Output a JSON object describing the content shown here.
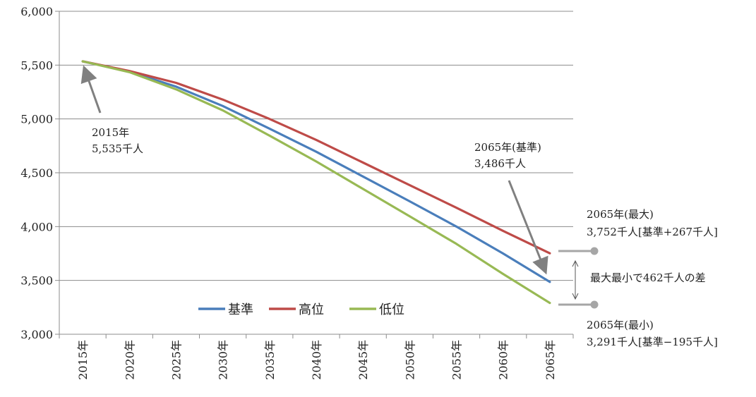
{
  "chart_data": {
    "type": "line",
    "categories": [
      "2015年",
      "2020年",
      "2025年",
      "2030年",
      "2035年",
      "2040年",
      "2045年",
      "2050年",
      "2055年",
      "2060年",
      "2065年"
    ],
    "series": [
      {
        "name": "基準",
        "color": "#4a7ebb",
        "values": [
          5535,
          5440,
          5300,
          5120,
          4910,
          4695,
          4465,
          4235,
          4000,
          3750,
          3486
        ]
      },
      {
        "name": "高位",
        "color": "#be4b48",
        "values": [
          5535,
          5445,
          5335,
          5180,
          5000,
          4805,
          4595,
          4385,
          4175,
          3960,
          3752
        ]
      },
      {
        "name": "低位",
        "color": "#98b954",
        "values": [
          5535,
          5435,
          5275,
          5080,
          4845,
          4605,
          4350,
          4095,
          3840,
          3560,
          3291
        ]
      }
    ],
    "y_ticks": [
      "3,000",
      "3,500",
      "4,000",
      "4,500",
      "5,000",
      "5,500",
      "6,000"
    ],
    "ylim": [
      3000,
      6000
    ],
    "grid": true,
    "legend_position": "bottom-center",
    "annotations": {
      "start": {
        "line1": "2015年",
        "line2": "5,535千人"
      },
      "base_end": {
        "line1": "2065年(基準)",
        "line2": "3,486千人"
      },
      "max_end": {
        "line1": "2065年(最大)",
        "line2": "3,752千人[基準+267千人]"
      },
      "min_end": {
        "line1": "2065年(最小)",
        "line2": "3,291千人[基準−195千人]"
      },
      "diff": "最大最小で462千人の差"
    },
    "annotation_color": "#a6a6a6"
  }
}
